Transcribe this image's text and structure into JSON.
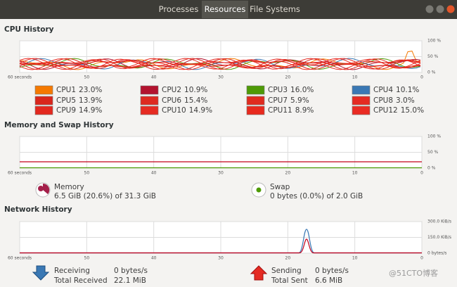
{
  "tabs": [
    "Processes",
    "Resources",
    "File Systems"
  ],
  "cpu": {
    "title": "CPU History",
    "x_labels": [
      "60 seconds",
      "50",
      "40",
      "30",
      "20",
      "10",
      "0"
    ],
    "y_labels": [
      "100 %",
      "50 %",
      "0 %"
    ],
    "cpus": [
      {
        "name": "CPU1",
        "value": "23.0%",
        "color": "#f57900"
      },
      {
        "name": "CPU2",
        "value": "10.9%",
        "color": "#b3132e"
      },
      {
        "name": "CPU3",
        "value": "16.0%",
        "color": "#4e9a06"
      },
      {
        "name": "CPU4",
        "value": "10.1%",
        "color": "#3a78b4"
      },
      {
        "name": "CPU5",
        "value": "13.9%",
        "color": "#d9261c"
      },
      {
        "name": "CPU6",
        "value": "15.4%",
        "color": "#de2a20"
      },
      {
        "name": "CPU7",
        "value": "5.9%",
        "color": "#e02b1f"
      },
      {
        "name": "CPU8",
        "value": "3.0%",
        "color": "#e52a22"
      },
      {
        "name": "CPU9",
        "value": "14.9%",
        "color": "#e3281f"
      },
      {
        "name": "CPU10",
        "value": "14.9%",
        "color": "#e62b22"
      },
      {
        "name": "CPU11",
        "value": "8.9%",
        "color": "#e8291e"
      },
      {
        "name": "CPU12",
        "value": "15.0%",
        "color": "#ea2b23"
      }
    ]
  },
  "memory": {
    "title": "Memory and Swap History",
    "x_labels": [
      "60 seconds",
      "50",
      "40",
      "30",
      "20",
      "10",
      "0"
    ],
    "y_labels": [
      "100 %",
      "50 %",
      "0 %"
    ],
    "memory_label": "Memory",
    "memory_value": "6.5 GiB (20.6%) of 31.3 GiB",
    "swap_label": "Swap",
    "swap_value": "0 bytes (0.0%) of 2.0 GiB"
  },
  "network": {
    "title": "Network History",
    "x_labels": [
      "60 seconds",
      "50",
      "40",
      "30",
      "20",
      "10",
      "0"
    ],
    "y_labels": [
      "300.0 KiB/s",
      "150.0 KiB/s",
      "0 bytes/s"
    ],
    "receiving_label": "Receiving",
    "receiving_value": "0 bytes/s",
    "total_received_label": "Total Received",
    "total_received_value": "22.1 MiB",
    "sending_label": "Sending",
    "sending_value": "0 bytes/s",
    "total_sent_label": "Total Sent",
    "total_sent_value": "6.6 MiB"
  },
  "watermark": "@51CTO博客"
}
